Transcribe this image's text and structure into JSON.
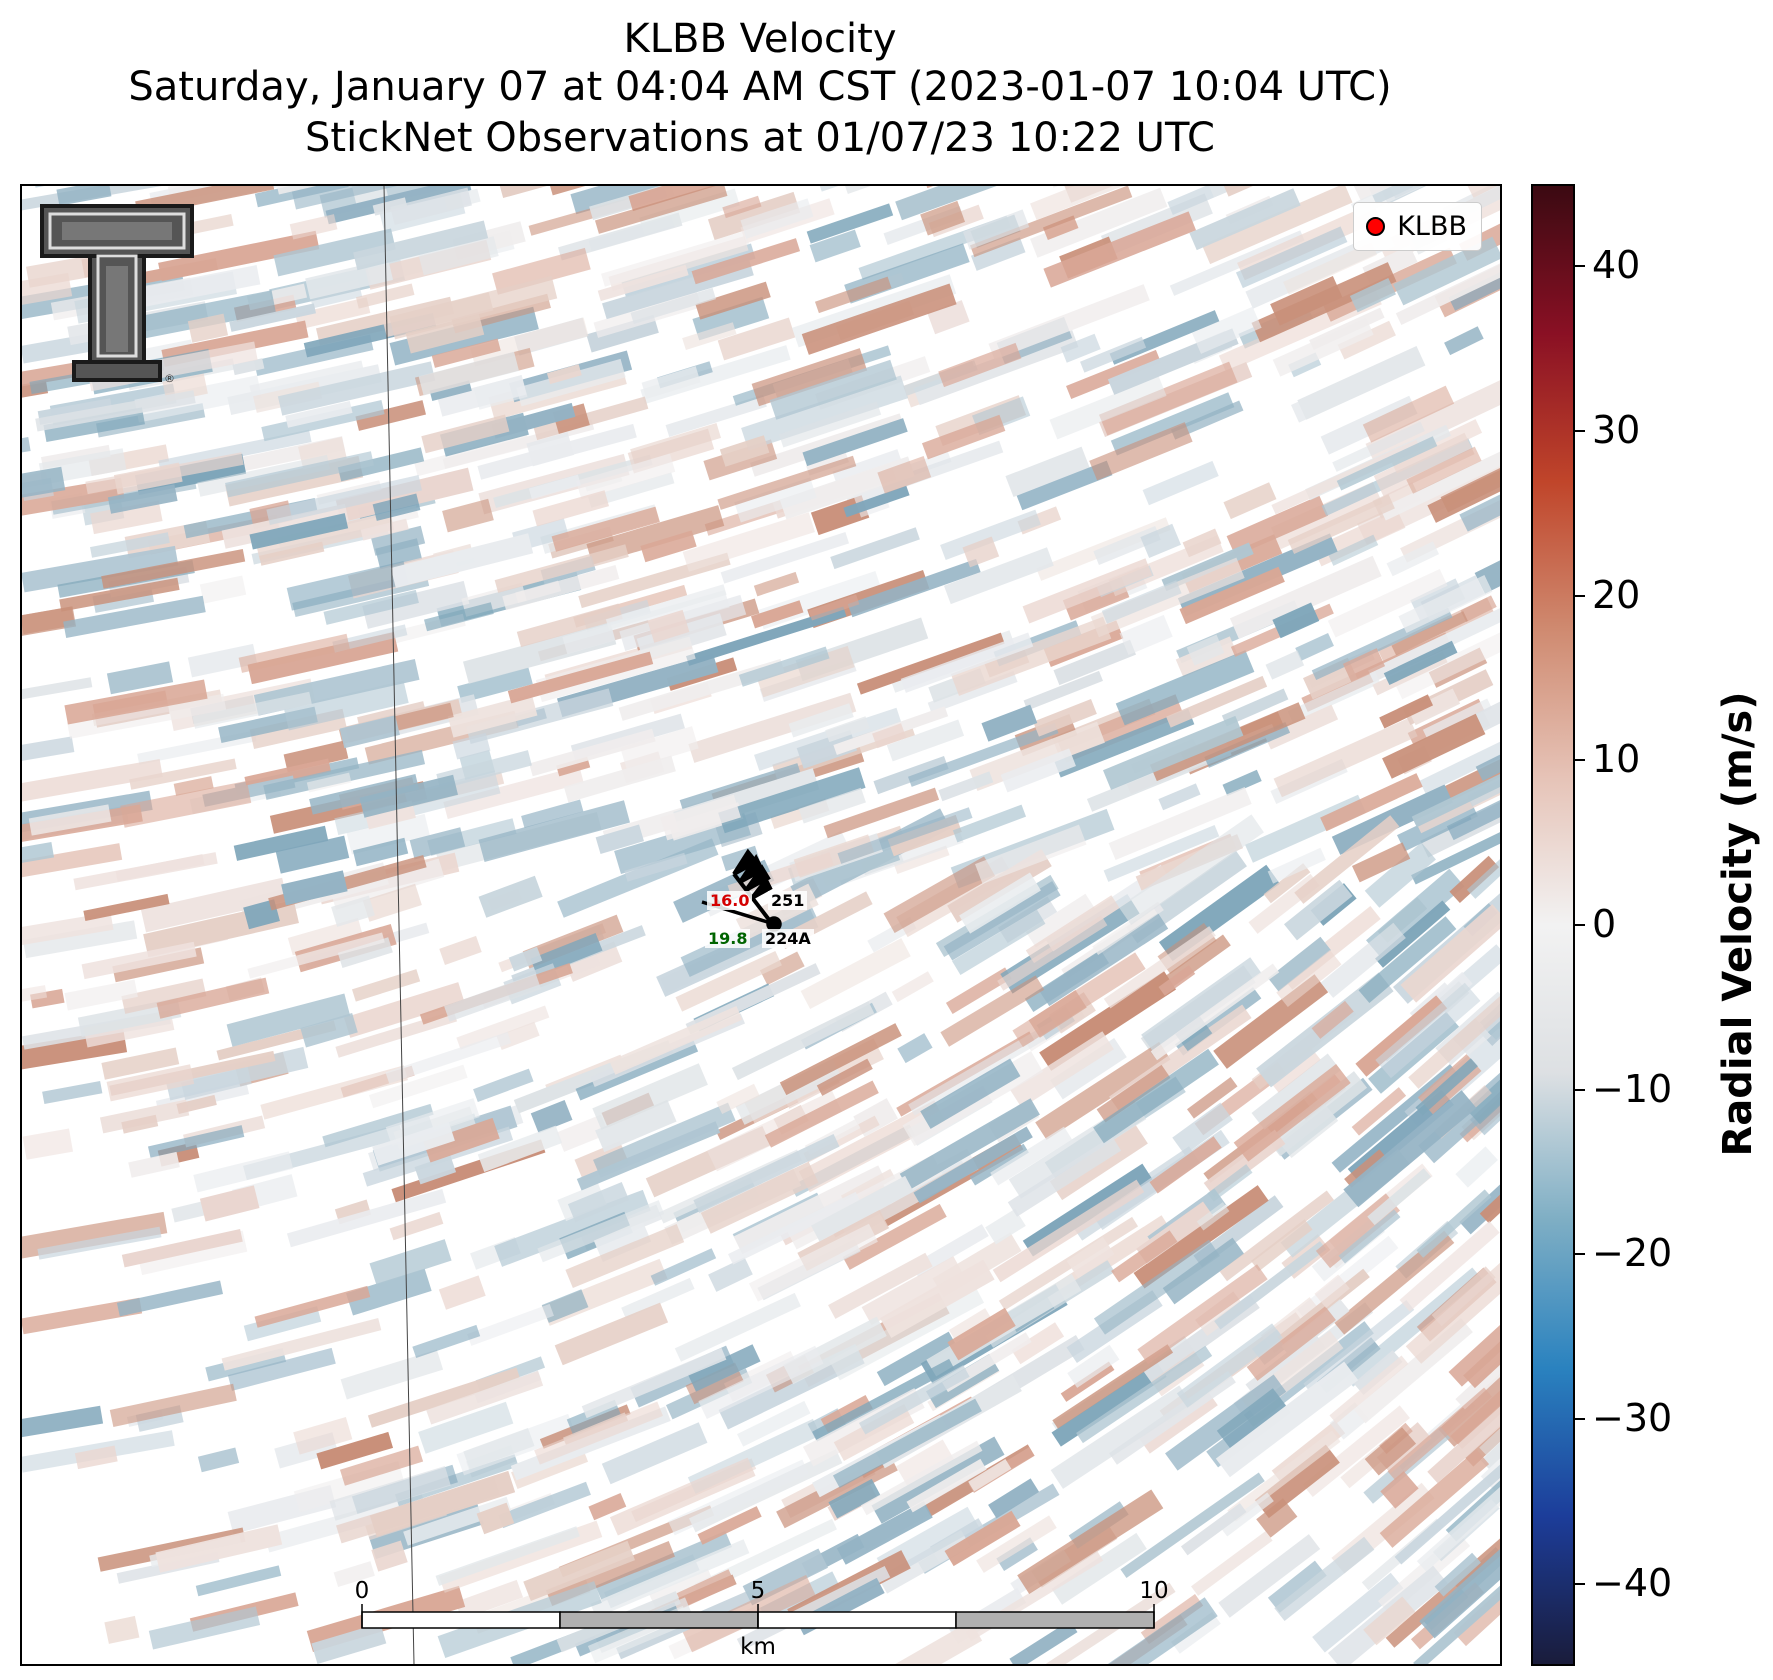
{
  "title": {
    "line1": "KLBB Velocity",
    "line2": "Saturday, January 07 at 04:04 AM CST (2023-01-07 10:04 UTC)",
    "line3": "StickNet Observations at 01/07/23 10:22 UTC"
  },
  "legend": {
    "label": "KLBB",
    "marker_color": "#ff0000"
  },
  "logo": {
    "name": "texas-tech-double-t-logo",
    "registered_mark": "®"
  },
  "stations": [
    {
      "id": "251",
      "value": "16.0",
      "value_color": "#d40000"
    },
    {
      "id": "224A",
      "value": "19.8",
      "value_color": "#006400"
    }
  ],
  "scalebar": {
    "ticks": [
      "0",
      "5",
      "10"
    ],
    "unit": "km"
  },
  "colorbar": {
    "title": "Radial Velocity (m/s)",
    "min": -45,
    "max": 45,
    "ticks": [
      40,
      30,
      20,
      10,
      0,
      -10,
      -20,
      -30,
      -40
    ],
    "tick_labels": [
      "40",
      "30",
      "20",
      "10",
      "0",
      "−10",
      "−20",
      "−30",
      "−40"
    ],
    "colormap": [
      "#1a1c3b",
      "#1c3d9a",
      "#2a82bf",
      "#7eaec4",
      "#dde0e3",
      "#f2f2f2",
      "#e6c3b7",
      "#cf8a70",
      "#c0452a",
      "#8a1024",
      "#3b0a12"
    ]
  }
}
